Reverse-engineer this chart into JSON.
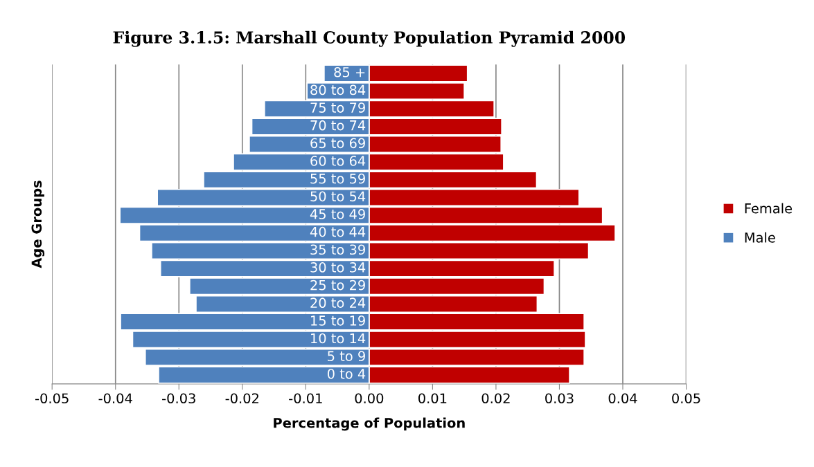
{
  "chart_data": {
    "type": "bar",
    "orientation": "horizontal",
    "title": "Figure 3.1.5: Marshall County Population Pyramid 2000",
    "xlabel": "Percentage of Population",
    "ylabel": "Age Groups",
    "categories": [
      "85 +",
      "80 to 84",
      "75 to 79",
      "70 to 74",
      "65 to 69",
      "60 to 64",
      "55 to 59",
      "50 to 54",
      "45 to 49",
      "40 to 44",
      "35 to 39",
      "30 to 34",
      "25 to 29",
      "20 to 24",
      "15 to 19",
      "10 to 14",
      "5 to 9",
      "0 to 4"
    ],
    "series": [
      {
        "name": "Female",
        "color": "#c00000",
        "values": [
          0.0155,
          0.015,
          0.0197,
          0.0209,
          0.0208,
          0.0212,
          0.0264,
          0.0331,
          0.0368,
          0.0388,
          0.0346,
          0.0292,
          0.0276,
          0.0265,
          0.0339,
          0.0341,
          0.0339,
          0.0316
        ]
      },
      {
        "name": "Male",
        "color": "#4f81bd",
        "values": [
          -0.0071,
          -0.0098,
          -0.0165,
          -0.0185,
          -0.0189,
          -0.0214,
          -0.0261,
          -0.0334,
          -0.0393,
          -0.0362,
          -0.0343,
          -0.0329,
          -0.0283,
          -0.0273,
          -0.0392,
          -0.0373,
          -0.0353,
          -0.0332
        ]
      }
    ],
    "xlim": [
      -0.05,
      0.05
    ],
    "xticks": [
      {
        "value": -0.05,
        "label": "-0.05"
      },
      {
        "value": -0.04,
        "label": "-0.04"
      },
      {
        "value": -0.03,
        "label": "-0.03"
      },
      {
        "value": -0.02,
        "label": "-0.02"
      },
      {
        "value": -0.01,
        "label": "-0.01"
      },
      {
        "value": 0,
        "label": "0.00"
      },
      {
        "value": 0.01,
        "label": "0.01"
      },
      {
        "value": 0.02,
        "label": "0.02"
      },
      {
        "value": 0.03,
        "label": "0.03"
      },
      {
        "value": 0.04,
        "label": "0.04"
      },
      {
        "value": 0.05,
        "label": "0.05"
      }
    ],
    "stacked": true,
    "grid": "x",
    "legend": "right"
  }
}
